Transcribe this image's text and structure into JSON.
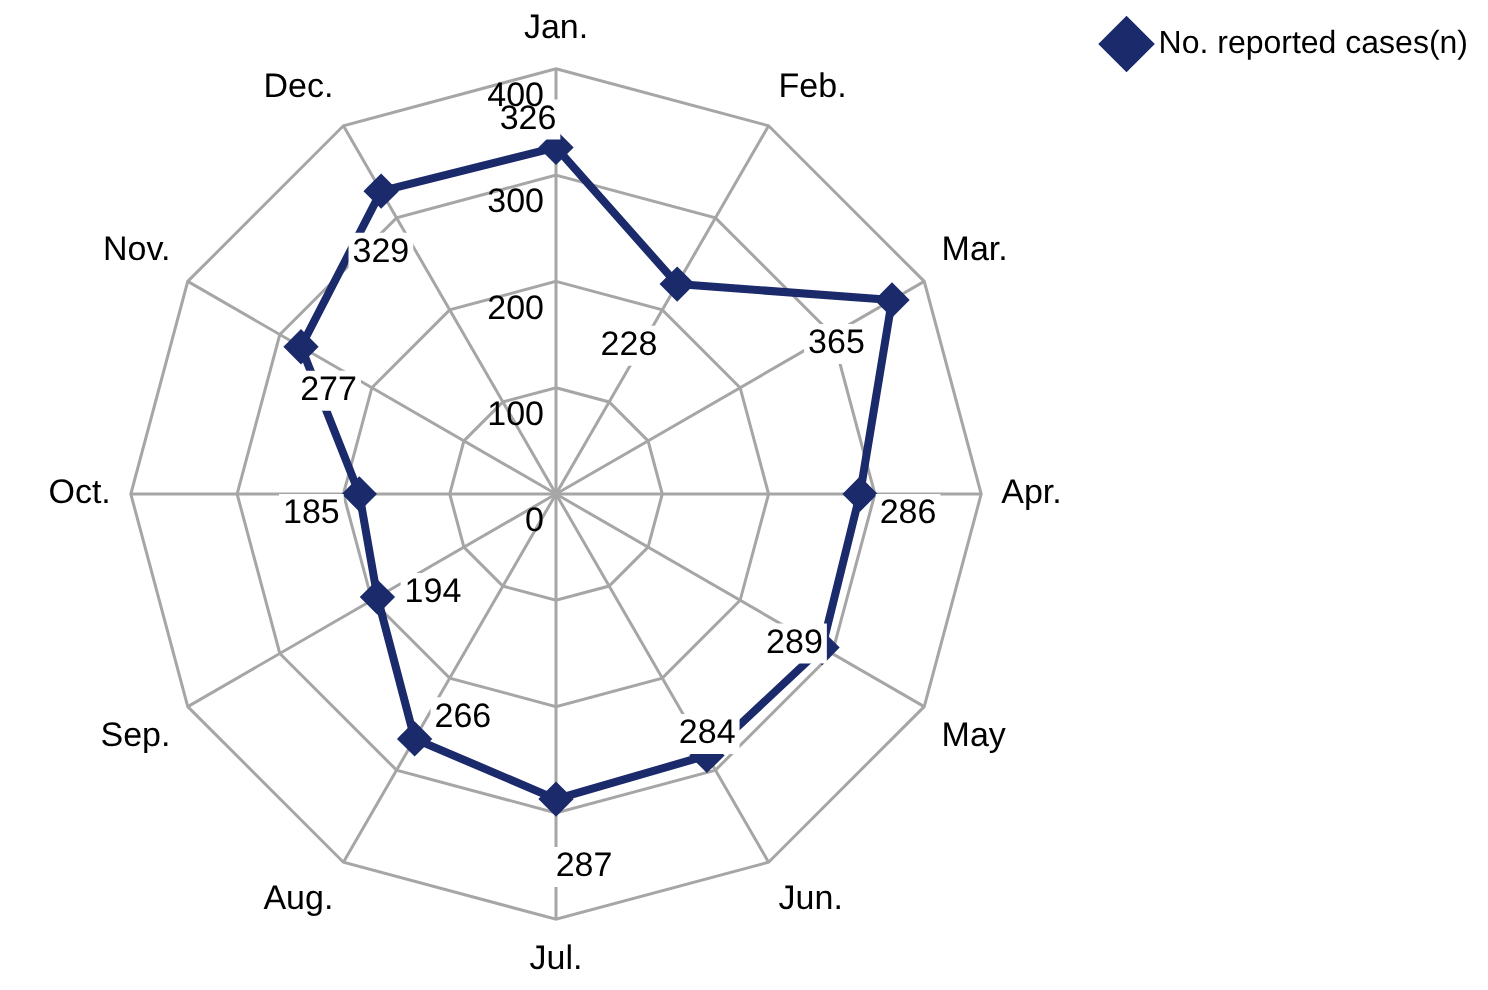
{
  "chart_data": {
    "type": "radar",
    "categories": [
      "Jan.",
      "Feb.",
      "Mar.",
      "Apr.",
      "May",
      "Jun.",
      "Jul.",
      "Aug.",
      "Sep.",
      "Oct.",
      "Nov.",
      "Dec."
    ],
    "series": [
      {
        "name": "No. reported cases(n)",
        "color": "#1b2a6b",
        "values": [
          326,
          228,
          365,
          286,
          289,
          284,
          287,
          266,
          194,
          185,
          277,
          329
        ]
      }
    ],
    "ylim": [
      0,
      400
    ],
    "yticks": [
      0,
      100,
      200,
      300,
      400
    ],
    "grid": true,
    "legend": "top right",
    "marker": "diamond",
    "line_style": "solid",
    "data_labels": true
  }
}
